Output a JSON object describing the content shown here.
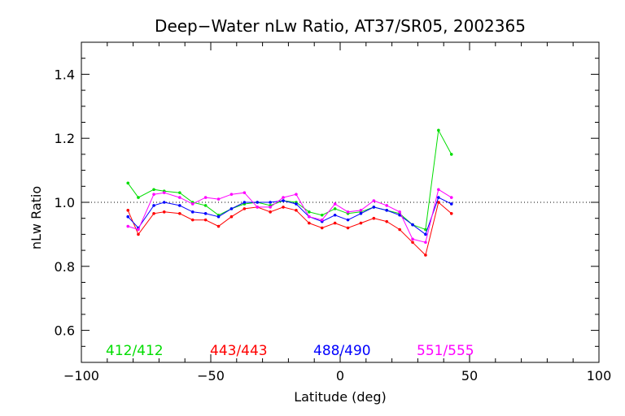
{
  "chart_data": {
    "type": "line",
    "title": "Deep−Water nLw Ratio, AT37/SR05, 2002365",
    "xlabel": "Latitude (deg)",
    "ylabel": "nLw Ratio",
    "xlim": [
      -100,
      100
    ],
    "ylim": [
      0.5,
      1.5
    ],
    "xticks": [
      -100,
      -50,
      0,
      50,
      100
    ],
    "xtick_labels": [
      "−100",
      "−50",
      "0",
      "50",
      "100"
    ],
    "yticks": [
      0.6,
      0.8,
      1.0,
      1.2,
      1.4
    ],
    "ytick_labels": [
      "0.6",
      "0.8",
      "1.0",
      "1.2",
      "1.4"
    ],
    "reference_line": 1.0,
    "grid": false,
    "legend_position": "bottom",
    "x": [
      -82,
      -78,
      -72,
      -68,
      -62,
      -57,
      -52,
      -47,
      -42,
      -37,
      -32,
      -27,
      -22,
      -17,
      -12,
      -7,
      -2,
      3,
      8,
      13,
      18,
      23,
      28,
      33,
      38,
      43
    ],
    "series": [
      {
        "name": "412/412",
        "color": "#00dd00",
        "values": [
          1.06,
          1.015,
          1.04,
          1.035,
          1.03,
          1.0,
          0.99,
          0.96,
          0.98,
          0.995,
          1.0,
          0.99,
          1.005,
          1.0,
          0.97,
          0.96,
          0.98,
          0.965,
          0.97,
          0.985,
          0.975,
          0.965,
          0.93,
          0.915,
          1.225,
          1.15
        ]
      },
      {
        "name": "443/443",
        "color": "#ff0000",
        "values": [
          0.975,
          0.9,
          0.965,
          0.97,
          0.965,
          0.945,
          0.945,
          0.925,
          0.955,
          0.98,
          0.985,
          0.97,
          0.985,
          0.975,
          0.935,
          0.92,
          0.935,
          0.92,
          0.935,
          0.95,
          0.94,
          0.915,
          0.875,
          0.835,
          1.0,
          0.965
        ]
      },
      {
        "name": "488/490",
        "color": "#0000ff",
        "values": [
          0.955,
          0.92,
          0.99,
          1.0,
          0.99,
          0.97,
          0.965,
          0.955,
          0.98,
          1.0,
          1.0,
          1.0,
          1.005,
          0.995,
          0.955,
          0.94,
          0.96,
          0.945,
          0.965,
          0.985,
          0.975,
          0.96,
          0.93,
          0.9,
          1.015,
          0.995
        ]
      },
      {
        "name": "551/555",
        "color": "#ff00ff",
        "values": [
          0.925,
          0.915,
          1.025,
          1.03,
          1.015,
          0.995,
          1.015,
          1.01,
          1.025,
          1.03,
          0.985,
          0.985,
          1.015,
          1.025,
          0.955,
          0.945,
          0.995,
          0.97,
          0.975,
          1.005,
          0.99,
          0.97,
          0.885,
          0.875,
          1.04,
          1.015
        ]
      }
    ]
  }
}
